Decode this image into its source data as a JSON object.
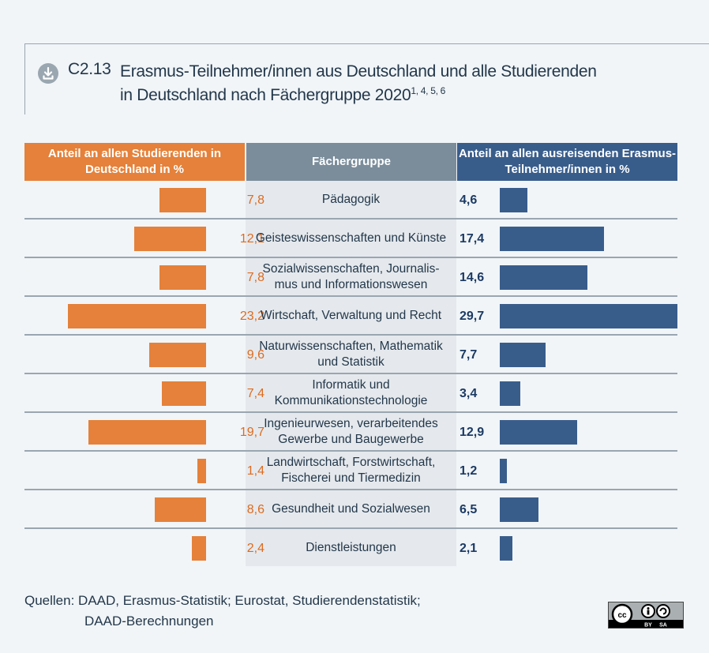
{
  "title": {
    "number": "C2.13",
    "line1": "Erasmus-Teilnehmer/innen aus Deutschland und alle Studierenden",
    "line2": "in Deutschland nach Fächergruppe 2020",
    "footnotes": "1, 4, 5, 6",
    "icon": "download-icon"
  },
  "headers": {
    "left": "Anteil an allen Studierenden in Deutschland in %",
    "middle": "Fächergruppe",
    "right": "Anteil an allen ausreisenden Erasmus-Teilnehmer/innen in %"
  },
  "colors": {
    "left": "#e5813a",
    "right": "#395d8b",
    "middle": "#7b8d9b"
  },
  "chart_data": {
    "type": "bar",
    "title": "Erasmus-Teilnehmer/innen aus Deutschland und alle Studierenden in Deutschland nach Fächergruppe 2020",
    "categories": [
      "Pädagogik",
      "Geisteswissenschaften und Künste",
      "Sozialwissenschaften, Journalis-mus und Informationswesen",
      "Wirtschaft, Verwaltung und Recht",
      "Naturwissenschaften, Mathematik und Statistik",
      "Informatik und Kommunikationstechnologie",
      "Ingenieurwesen, verarbeitendes Gewerbe und Baugewerbe",
      "Landwirtschaft, Forstwirtschaft, Fischerei und Tiermedizin",
      "Gesundheit und Sozialwesen",
      "Dienstleistungen"
    ],
    "series": [
      {
        "name": "Anteil an allen Studierenden in Deutschland in %",
        "values": [
          7.8,
          12.1,
          7.8,
          23.2,
          9.6,
          7.4,
          19.7,
          1.4,
          8.6,
          2.4
        ],
        "labels": [
          "7,8",
          "12,1",
          "7,8",
          "23,2",
          "9,6",
          "7,4",
          "19,7",
          "1,4",
          "8,6",
          "2,4"
        ]
      },
      {
        "name": "Anteil an allen ausreisenden Erasmus-Teilnehmer/innen in %",
        "values": [
          4.6,
          17.4,
          14.6,
          29.7,
          7.7,
          3.4,
          12.9,
          1.2,
          6.5,
          2.1
        ],
        "labels": [
          "4,6",
          "17,4",
          "14,6",
          "29,7",
          "7,7",
          "3,4",
          "12,9",
          "1,2",
          "6,5",
          "2,1"
        ]
      }
    ],
    "category_lines": [
      [
        "Pädagogik"
      ],
      [
        "Geisteswissenschaften und Künste"
      ],
      [
        "Sozialwissenschaften, Journalis-",
        "mus und Informationswesen"
      ],
      [
        "Wirtschaft, Verwaltung und Recht"
      ],
      [
        "Naturwissenschaften, Mathematik",
        "und Statistik"
      ],
      [
        "Informatik und",
        "Kommunikationstechnologie"
      ],
      [
        "Ingenieurwesen, verarbeitendes",
        "Gewerbe und Baugewerbe"
      ],
      [
        "Landwirtschaft, Forstwirtschaft,",
        "Fischerei und Tiermedizin"
      ],
      [
        "Gesundheit und Sozialwesen"
      ],
      [
        "Dienstleistungen"
      ]
    ],
    "xlabel": "",
    "ylabel": "",
    "legend": "none"
  },
  "source": {
    "line1": "Quellen: DAAD, Erasmus-Statistik; Eurostat, Studierendenstatistik;",
    "line2": "DAAD-Berechnungen"
  },
  "license": {
    "icon": "cc-by-sa-icon",
    "by": "BY",
    "sa": "SA",
    "cc": "cc"
  }
}
